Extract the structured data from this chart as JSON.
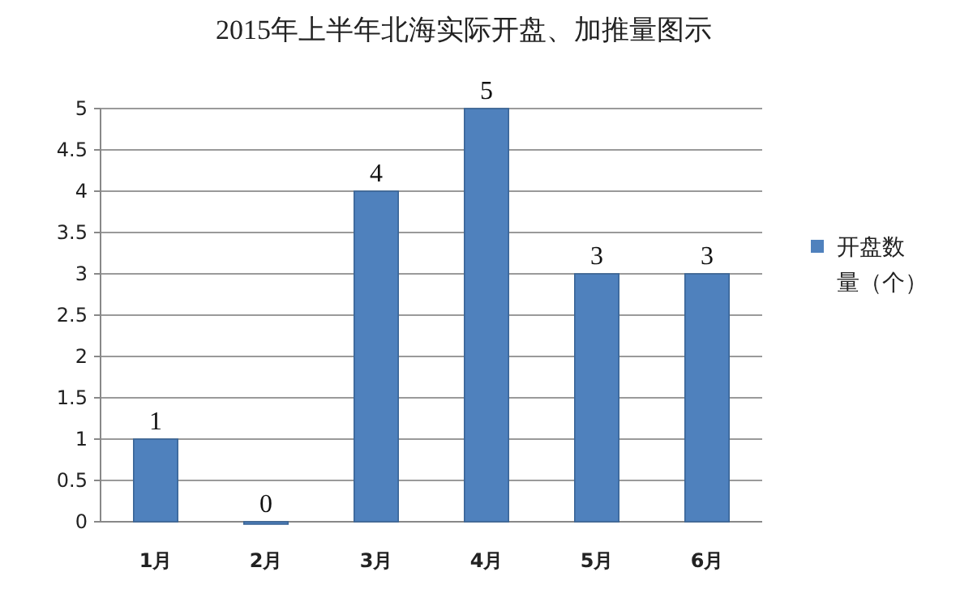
{
  "chart_data": {
    "type": "bar",
    "title": "2015年上半年北海实际开盘、加推量图示",
    "categories": [
      "1月",
      "2月",
      "3月",
      "4月",
      "5月",
      "6月"
    ],
    "series": [
      {
        "name": "开盘数量（个）",
        "color": "#4f81bd",
        "values": [
          1,
          0,
          4,
          5,
          3,
          3
        ]
      }
    ],
    "ylim": [
      0,
      5
    ],
    "yticks": [
      0,
      0.5,
      1,
      1.5,
      2,
      2.5,
      3,
      3.5,
      4,
      4.5,
      5
    ],
    "grid": "y",
    "legend": "right",
    "data_labels": true
  }
}
